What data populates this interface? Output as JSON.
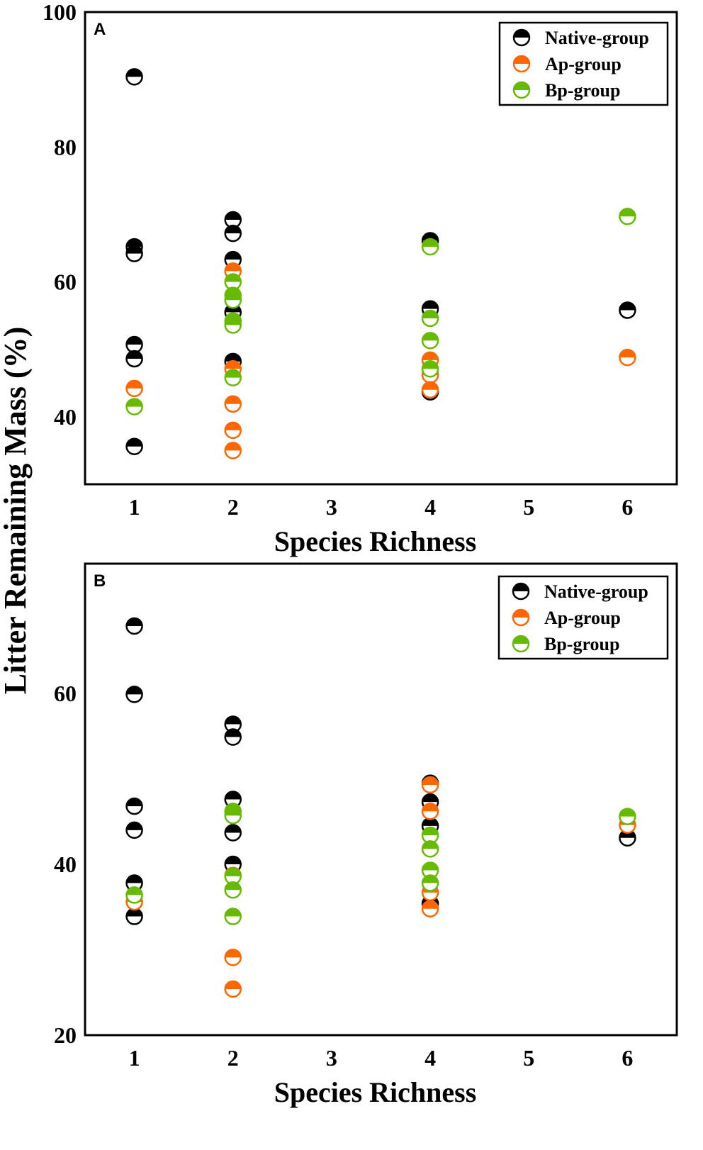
{
  "chart_data": {
    "type": "scatter",
    "shared_ylabel": "Litter Remaining Mass (%)",
    "colors": {
      "Native-group": "#000000",
      "Ap-group": "#ff6600",
      "Bp-group": "#66bb00"
    },
    "panels": [
      {
        "label": "A",
        "xlabel": "Species Richness",
        "x_ticks": [
          1,
          2,
          3,
          4,
          5,
          6
        ],
        "y_ticks": [
          40,
          60,
          80,
          100
        ],
        "xlim": [
          0.5,
          6.5
        ],
        "ylim": [
          30,
          100
        ],
        "legend": {
          "position": "top-right",
          "entries": [
            "Native-group",
            "Ap-group",
            "Bp-group"
          ]
        },
        "series": [
          {
            "name": "Native-group",
            "points": [
              [
                1,
                90.4
              ],
              [
                1,
                65.2
              ],
              [
                1,
                64.2
              ],
              [
                1,
                50.7
              ],
              [
                1,
                48.6
              ],
              [
                1,
                35.6
              ],
              [
                2,
                69.2
              ],
              [
                2,
                67.2
              ],
              [
                2,
                63.3
              ],
              [
                2,
                55.5
              ],
              [
                2,
                48.2
              ],
              [
                4,
                66.1
              ],
              [
                4,
                56.0
              ],
              [
                4,
                43.7
              ],
              [
                6,
                55.8
              ]
            ]
          },
          {
            "name": "Ap-group",
            "points": [
              [
                1,
                44.2
              ],
              [
                2,
                61.6
              ],
              [
                2,
                47.1
              ],
              [
                2,
                41.9
              ],
              [
                2,
                38.0
              ],
              [
                2,
                35.0
              ],
              [
                4,
                48.4
              ],
              [
                4,
                46.2
              ],
              [
                4,
                44.0
              ],
              [
                6,
                48.8
              ]
            ]
          },
          {
            "name": "Bp-group",
            "points": [
              [
                1,
                41.5
              ],
              [
                2,
                60.0
              ],
              [
                2,
                58.0
              ],
              [
                2,
                57.3
              ],
              [
                2,
                54.2
              ],
              [
                2,
                53.6
              ],
              [
                2,
                45.8
              ],
              [
                4,
                65.2
              ],
              [
                4,
                54.6
              ],
              [
                4,
                51.3
              ],
              [
                4,
                47.1
              ],
              [
                6,
                69.7
              ]
            ]
          }
        ]
      },
      {
        "label": "B",
        "xlabel": "Species Richness",
        "x_ticks": [
          1,
          2,
          3,
          4,
          5,
          6
        ],
        "y_ticks": [
          20,
          40,
          60
        ],
        "xlim": [
          0.5,
          6.5
        ],
        "ylim": [
          20,
          75.2
        ],
        "legend": {
          "position": "top-right",
          "entries": [
            "Native-group",
            "Ap-group",
            "Bp-group"
          ]
        },
        "series": [
          {
            "name": "Native-group",
            "points": [
              [
                1,
                67.9
              ],
              [
                1,
                59.9
              ],
              [
                1,
                46.8
              ],
              [
                1,
                44.0
              ],
              [
                1,
                37.8
              ],
              [
                1,
                33.9
              ],
              [
                2,
                56.4
              ],
              [
                2,
                54.9
              ],
              [
                2,
                47.6
              ],
              [
                2,
                43.7
              ],
              [
                2,
                40.0
              ],
              [
                4,
                49.5
              ],
              [
                4,
                47.3
              ],
              [
                4,
                44.5
              ],
              [
                4,
                35.4
              ],
              [
                6,
                43.1
              ]
            ]
          },
          {
            "name": "Ap-group",
            "points": [
              [
                1,
                35.6
              ],
              [
                2,
                38.7
              ],
              [
                2,
                29.1
              ],
              [
                2,
                25.4
              ],
              [
                4,
                49.3
              ],
              [
                4,
                46.2
              ],
              [
                4,
                36.7
              ],
              [
                4,
                34.8
              ],
              [
                6,
                44.6
              ]
            ]
          },
          {
            "name": "Bp-group",
            "points": [
              [
                1,
                36.4
              ],
              [
                2,
                46.2
              ],
              [
                2,
                45.7
              ],
              [
                2,
                38.6
              ],
              [
                2,
                37.0
              ],
              [
                2,
                33.9
              ],
              [
                4,
                43.4
              ],
              [
                4,
                41.8
              ],
              [
                4,
                39.3
              ],
              [
                4,
                37.8
              ],
              [
                6,
                45.6
              ]
            ]
          }
        ]
      }
    ]
  }
}
